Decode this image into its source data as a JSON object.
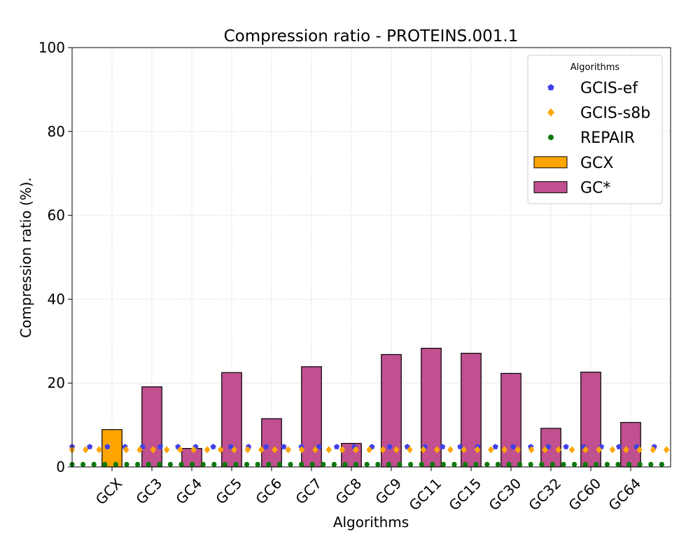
{
  "chart_data": {
    "type": "bar",
    "title": "Compression ratio -  PROTEINS.001.1",
    "xlabel": "Algorithms",
    "ylabel": "Compression ratio (%).",
    "ylim": [
      0,
      100
    ],
    "yticks": [
      "0",
      "20",
      "40",
      "60",
      "80",
      "100"
    ],
    "grid": true,
    "categories": [
      "GCX",
      "GC3",
      "GC4",
      "GC5",
      "GC6",
      "GC7",
      "GC8",
      "GC9",
      "GC11",
      "GC15",
      "GC30",
      "GC32",
      "GC60",
      "GC64"
    ],
    "values": [
      8.9,
      19.1,
      4.4,
      22.5,
      11.5,
      23.9,
      5.6,
      26.8,
      28.3,
      27.1,
      22.3,
      9.2,
      22.6,
      10.6
    ],
    "bar_series": [
      {
        "name": "GCX",
        "color": "#ffa500",
        "categories": [
          "GCX"
        ]
      },
      {
        "name": "GC*",
        "color": "#c0508f",
        "categories": [
          "GC3",
          "GC4",
          "GC5",
          "GC6",
          "GC7",
          "GC8",
          "GC9",
          "GC11",
          "GC15",
          "GC30",
          "GC32",
          "GC60",
          "GC64"
        ]
      }
    ],
    "baselines": [
      {
        "name": "GCIS-ef",
        "value": 4.8,
        "color": "#4040e8",
        "marker": "pentagon"
      },
      {
        "name": "GCIS-s8b",
        "value": 4.1,
        "color": "#ffa500",
        "marker": "diamond"
      },
      {
        "name": "REPAIR",
        "value": 0.6,
        "color": "#0a7a0a",
        "marker": "circle"
      }
    ],
    "legend": {
      "title": "Algorithms",
      "position": "top-right"
    }
  }
}
